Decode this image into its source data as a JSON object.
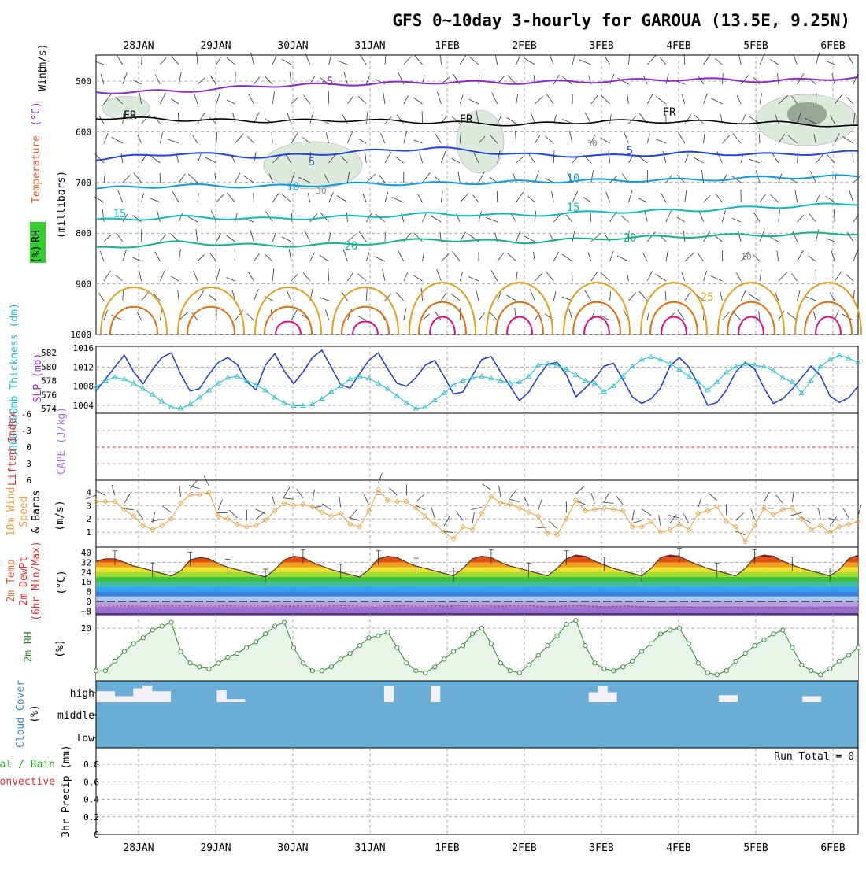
{
  "title": "GFS 0~10day 3-hourly for GAROUA (13.5E, 9.25N)",
  "colors": {
    "t_minus5": "#8a2bc8",
    "t_fr": "#000000",
    "t_5": "#2244dd",
    "t_10": "#1199dd",
    "t_15": "#11b8c0",
    "t_20": "#17b08a",
    "t_25": "#e0a020",
    "t_30": "#e07010",
    "t_35": "#e0107a",
    "slp": "#1a3ad0",
    "thickness": "#22bbcc",
    "lifted_zero": "#dd3333",
    "wind10": "#e8a040",
    "rh": "#2a8a2a",
    "rh_fill": "#eaf5ea",
    "cloud": "#6aaed6",
    "rh_green": "#33cc33"
  },
  "chart_data": [
    {
      "panel": "upper-air",
      "type": "contour",
      "dates": [
        "28JAN",
        "29JAN",
        "30JAN",
        "31JAN",
        "1FEB",
        "2FEB",
        "3FEB",
        "4FEB",
        "5FEB",
        "6FEB"
      ],
      "ylabel_parts": [
        "Wind",
        "(m/s)",
        "Temperature",
        "(°C)",
        "RH",
        "(%)"
      ],
      "ylabel_units": "(millibars)",
      "ylim": [
        1000,
        450
      ],
      "yticks": [
        500,
        600,
        700,
        800,
        900,
        1000
      ],
      "isotherms": [
        {
          "label": "-5",
          "p": [
            522,
            520,
            509,
            506,
            502,
            503,
            500,
            496,
            500,
            493
          ]
        },
        {
          "label": "FR",
          "p": [
            572,
            576,
            579,
            577,
            581,
            586,
            579,
            580,
            582,
            590
          ]
        },
        {
          "label": "5",
          "p": [
            654,
            642,
            650,
            640,
            632,
            645,
            648,
            642,
            645,
            640
          ]
        },
        {
          "label": "10",
          "p": [
            712,
            706,
            708,
            703,
            702,
            699,
            696,
            695,
            690,
            688
          ]
        },
        {
          "label": "15",
          "p": [
            775,
            768,
            772,
            768,
            762,
            765,
            758,
            755,
            748,
            742
          ]
        },
        {
          "label": "20",
          "p": [
            830,
            818,
            825,
            822,
            812,
            818,
            810,
            806,
            803,
            800
          ]
        }
      ],
      "inline_labels": [
        "-5",
        "FR",
        "FR",
        "FR",
        "5",
        "5",
        "10",
        "10",
        "15",
        "15",
        "20",
        "20",
        "25",
        "10",
        "30",
        "30"
      ]
    },
    {
      "panel": "slp-thickness",
      "type": "line",
      "left_label": "1000~500mb Thickness (dm)",
      "right_label": "SLP (mb)",
      "thickness_ticks": [
        574,
        576,
        578,
        580,
        582
      ],
      "slp_ticks": [
        1004,
        1008,
        1012,
        1016
      ],
      "series": [
        {
          "key": "slp",
          "values": [
            1007.0,
            1009.5,
            1012.0,
            1014.5,
            1011.0,
            1008.5,
            1011.5,
            1014.0,
            1015.0,
            1010.5,
            1007.0,
            1007.5,
            1010.5,
            1013.0,
            1014.0,
            1012.5,
            1009.0,
            1007.2,
            1012.4,
            1014.8,
            1011.2,
            1008.5,
            1011.0,
            1014.0,
            1015.5,
            1012.0,
            1008.3,
            1007.6,
            1010.6,
            1013.4,
            1015.0,
            1011.6,
            1008.6,
            1008.0,
            1009.8,
            1012.4,
            1013.4,
            1010.0,
            1006.4,
            1006.8,
            1010.2,
            1013.6,
            1014.2,
            1011.0,
            1008.0,
            1005.0,
            1006.8,
            1010.0,
            1012.6,
            1013.0,
            1010.4,
            1005.8,
            1007.6,
            1009.6,
            1012.2,
            1012.8,
            1009.4,
            1005.8,
            1004.4,
            1005.4,
            1007.6,
            1012.2,
            1014.0,
            1012.0,
            1008.4,
            1004.0,
            1004.6,
            1007.2,
            1011.0,
            1013.0,
            1011.6,
            1007.6,
            1004.4,
            1005.4,
            1007.4,
            1009.8,
            1012.2,
            1010.2,
            1006.0,
            1004.6,
            1005.6,
            1008.0
          ]
        },
        {
          "key": "thickness",
          "values": [
            577.0,
            578.0,
            578.5,
            578.2,
            577.6,
            576.8,
            576.0,
            575.0,
            574.2,
            574.0,
            574.6,
            575.6,
            576.6,
            577.6,
            578.4,
            578.6,
            578.0,
            577.4,
            576.6,
            575.6,
            574.8,
            574.4,
            574.4,
            574.6,
            575.4,
            576.4,
            577.2,
            578.2,
            578.6,
            578.3,
            577.6,
            576.8,
            575.8,
            574.8,
            574.0,
            574.2,
            575.2,
            576.2,
            577.4,
            578.0,
            578.4,
            578.6,
            578.3,
            578.0,
            577.6,
            577.8,
            578.6,
            580.2,
            580.4,
            580.2,
            579.6,
            578.8,
            578.0,
            577.6,
            576.4,
            577.2,
            578.6,
            580.0,
            581.0,
            581.4,
            581.0,
            580.4,
            579.6,
            578.6,
            577.8,
            576.6,
            577.8,
            579.2,
            580.0,
            580.4,
            580.2,
            580.0,
            579.4,
            578.4,
            577.8,
            576.2,
            578.0,
            580.0,
            581.0,
            581.6,
            581.2,
            580.6
          ]
        }
      ]
    },
    {
      "panel": "lifted-cape",
      "type": "line",
      "left_label": "Lifted Index",
      "right_label": "CAPE (J/kg)",
      "yticks": [
        6,
        3,
        0,
        -3,
        -6
      ],
      "ytick_labels": [
        "-6",
        "-3",
        "0",
        "3",
        "6"
      ],
      "values": []
    },
    {
      "panel": "wind10m",
      "type": "line",
      "ylabel": "10m Wind Speed & Barbs (m/s)",
      "ylabel_parts": [
        "10m Wind",
        "Speed",
        "& Barbs",
        "(m/s)"
      ],
      "ylim": [
        0,
        4.6
      ],
      "yticks": [
        1,
        2,
        3,
        4
      ],
      "values": [
        3.3,
        3.3,
        3.3,
        2.7,
        2.2,
        1.5,
        1.2,
        1.5,
        2.0,
        3.2,
        3.8,
        3.8,
        4.0,
        2.2,
        2.0,
        1.6,
        1.4,
        1.5,
        1.9,
        2.6,
        3.2,
        3.0,
        3.1,
        2.9,
        2.5,
        2.2,
        2.4,
        1.6,
        1.4,
        2.6,
        4.2,
        3.4,
        3.3,
        3.3,
        2.8,
        2.2,
        1.6,
        1.0,
        0.5,
        1.4,
        1.2,
        2.4,
        3.7,
        3.2,
        3.1,
        2.8,
        2.5,
        2.2,
        0.9,
        0.8,
        2.0,
        3.4,
        2.6,
        2.7,
        2.8,
        2.7,
        2.6,
        1.4,
        1.4,
        1.8,
        1.0,
        1.2,
        1.6,
        1.2,
        2.4,
        2.6,
        2.9,
        1.8,
        1.4,
        0.3,
        1.5,
        2.8,
        2.3,
        2.7,
        2.8,
        2.0,
        1.2,
        1.5,
        1.0,
        1.4,
        1.6,
        1.8
      ]
    },
    {
      "panel": "temperature-2m",
      "type": "area",
      "ylabel_parts": [
        "2m Temp",
        "2m DewPt",
        "(6hr Min/Max)"
      ],
      "ylabel_units": "(°C)",
      "ylim": [
        -12,
        40
      ],
      "yticks": [
        -8,
        0,
        8,
        16,
        24,
        32,
        40
      ],
      "ytick_labels": [
        "−8",
        "0",
        "8",
        "16",
        "24",
        "32",
        "40"
      ],
      "temperature": [
        33,
        35,
        35,
        32,
        29,
        27,
        25,
        23,
        21,
        25,
        34,
        36,
        35,
        31,
        28,
        26,
        24,
        22,
        20,
        26,
        34,
        37,
        36,
        32,
        29,
        26,
        24,
        22,
        20,
        26,
        35,
        37,
        36,
        32,
        29,
        27,
        25,
        23,
        21,
        27,
        35,
        37,
        36,
        32,
        29,
        27,
        25,
        23,
        21,
        27,
        35,
        38,
        37,
        33,
        30,
        27,
        25,
        23,
        21,
        27,
        36,
        38,
        37,
        33,
        30,
        27,
        25,
        23,
        21,
        27,
        36,
        38,
        37,
        33,
        30,
        27,
        25,
        23,
        21,
        26,
        35,
        38
      ],
      "dewpoint": [
        -3.0,
        -3.0,
        -3.2,
        -3.5,
        -3.2,
        -3.0,
        -3.2,
        -3.4,
        -3.6,
        -3.4,
        -3.2,
        -3.0,
        -3.0,
        -3.3,
        -3.5,
        -3.4,
        -3.2,
        -3.0,
        -3.0,
        -3.2,
        -3.6,
        -3.8,
        -3.6,
        -3.3,
        -3.0,
        -3.2,
        -3.5,
        -3.4,
        -3.1,
        -2.9,
        -3.0,
        -3.3,
        -3.6,
        -3.4,
        -3.1,
        -3.2,
        -3.6,
        -3.9,
        -3.7,
        -3.4,
        -3.2,
        -3.3,
        -3.6,
        -3.8,
        -3.5,
        -3.2,
        -3.5,
        -3.9,
        -4.2,
        -4.0,
        -3.6,
        -3.5,
        -3.7,
        -4.0,
        -4.3,
        -4.1,
        -3.8,
        -3.9,
        -4.4,
        -4.8,
        -5.0,
        -4.8,
        -4.6,
        -4.8,
        -5.2,
        -5.4,
        -5.2,
        -4.9,
        -5.0,
        -5.3,
        -5.6,
        -5.4,
        -5.2,
        -5.1,
        -5.3,
        -5.6,
        -5.8,
        -5.6,
        -5.4,
        -5.5,
        -5.7,
        -5.9
      ]
    },
    {
      "panel": "rh-2m",
      "type": "line",
      "ylabel": "2m RH (%)",
      "ylabel_parts": [
        "2m RH",
        "(%)"
      ],
      "ylim": [
        4,
        24
      ],
      "yticks": [
        20
      ],
      "values": [
        9.0,
        9.0,
        11.5,
        14.0,
        16.0,
        17.5,
        19.5,
        20.5,
        21.5,
        14.0,
        11.0,
        10.0,
        9.5,
        11.0,
        12.5,
        13.5,
        15.0,
        16.5,
        18.5,
        20.5,
        21.5,
        15.0,
        11.0,
        9.0,
        9.0,
        10.0,
        12.0,
        13.5,
        15.5,
        17.5,
        18.0,
        19.0,
        15.0,
        11.0,
        9.0,
        8.5,
        10.0,
        12.0,
        14.0,
        15.5,
        18.5,
        20.0,
        16.0,
        11.0,
        9.0,
        8.5,
        10.5,
        13.0,
        15.5,
        18.0,
        21.0,
        22.0,
        15.5,
        11.0,
        9.5,
        9.0,
        10.0,
        11.5,
        14.0,
        16.0,
        18.5,
        19.5,
        20.0,
        16.0,
        11.0,
        8.5,
        8.0,
        9.0,
        11.5,
        13.5,
        15.5,
        17.0,
        18.5,
        19.5,
        15.0,
        10.5,
        9.0,
        8.0,
        9.5,
        11.5,
        13.0,
        15.0
      ]
    },
    {
      "panel": "cloud-cover",
      "type": "heatmap",
      "ylabel_parts": [
        "Cloud Cover",
        "(%)"
      ],
      "levels": [
        "high",
        "middle",
        "low"
      ],
      "high_gaps": [
        0.55,
        0.55,
        0.3,
        0.3,
        0.7,
        0.85,
        0.55,
        0.55,
        0.0,
        0.0,
        0.0,
        0.0,
        0.0,
        0.6,
        0.15,
        0.15,
        0.0,
        0.0,
        0.0,
        0.0,
        0.0,
        0.0,
        0.0,
        0.0,
        0.0,
        0.0,
        0.0,
        0.0,
        0.0,
        0.0,
        0.0,
        0.8,
        0.0,
        0.0,
        0.0,
        0.0,
        0.8,
        0.0,
        0.0,
        0.0,
        0.0,
        0.0,
        0.0,
        0.0,
        0.0,
        0.0,
        0.0,
        0.0,
        0.0,
        0.0,
        0.0,
        0.0,
        0.0,
        0.5,
        0.8,
        0.5,
        0.0,
        0.0,
        0.0,
        0.0,
        0.0,
        0.0,
        0.0,
        0.0,
        0.0,
        0.0,
        0.0,
        0.35,
        0.35,
        0.0,
        0.0,
        0.0,
        0.0,
        0.0,
        0.0,
        0.0,
        0.3,
        0.3,
        0.0,
        0.0,
        0.0,
        0.0
      ]
    },
    {
      "panel": "precip",
      "type": "bar",
      "ylabel_parts": [
        "Total / Rain",
        "Convective",
        "3hr Precip (mm)"
      ],
      "ylim": [
        0,
        1
      ],
      "yticks": [
        0,
        0.2,
        0.4,
        0.6,
        0.8
      ],
      "ytick_labels": [
        "0",
        "0.2",
        "0.4",
        "0.6",
        "0.8"
      ],
      "run_total_label": "Run Total = 0",
      "values": []
    }
  ]
}
